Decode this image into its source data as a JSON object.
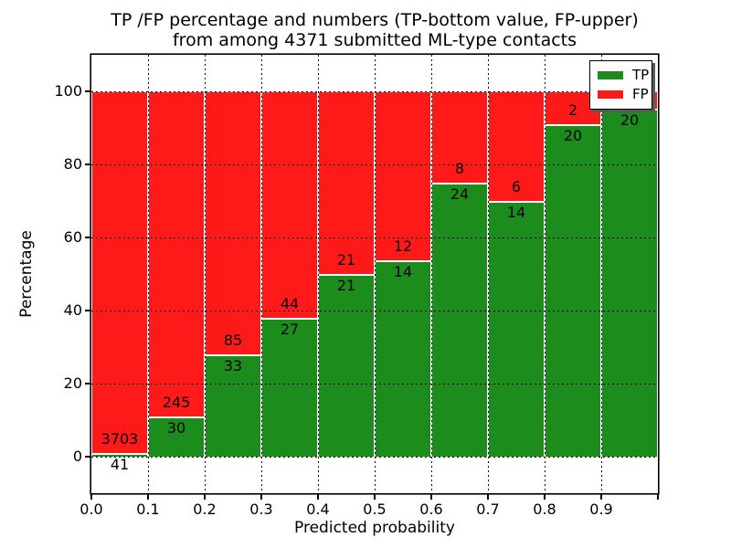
{
  "chart_data": {
    "type": "bar",
    "stacked": true,
    "title_line1": "TP /FP percentage and numbers (TP-bottom value, FP-upper)",
    "title_line2": "from among 4371 submitted ML-type contacts",
    "xlabel": "Predicted probability",
    "ylabel": "Percentage",
    "xlim": [
      0.0,
      1.0
    ],
    "ylim": [
      -10,
      110
    ],
    "y_ticks": [
      0,
      20,
      40,
      60,
      80,
      100
    ],
    "y_tick_labels": [
      "0",
      "20",
      "40",
      "60",
      "80",
      "100"
    ],
    "grid": "dotted",
    "legend_position": "upper right",
    "colors": {
      "tp": "#1c8c1c",
      "fp": "#ff1a1a"
    },
    "legend": [
      {
        "name": "tp",
        "label": "TP",
        "color": "#1c8c1c"
      },
      {
        "name": "fp",
        "label": "FP",
        "color": "#ff1a1a"
      }
    ],
    "bins": [
      {
        "x_tick": "0.0",
        "tp_pct": 1.1,
        "fp_pct": 98.9,
        "tp_label": "41",
        "fp_label": "3703"
      },
      {
        "x_tick": "0.1",
        "tp_pct": 10.91,
        "fp_pct": 89.09,
        "tp_label": "30",
        "fp_label": "245"
      },
      {
        "x_tick": "0.2",
        "tp_pct": 27.97,
        "fp_pct": 72.03,
        "tp_label": "33",
        "fp_label": "85"
      },
      {
        "x_tick": "0.3",
        "tp_pct": 38.03,
        "fp_pct": 61.97,
        "tp_label": "27",
        "fp_label": "44"
      },
      {
        "x_tick": "0.4",
        "tp_pct": 50.0,
        "fp_pct": 50.0,
        "tp_label": "21",
        "fp_label": "21"
      },
      {
        "x_tick": "0.5",
        "tp_pct": 53.85,
        "fp_pct": 46.15,
        "tp_label": "14",
        "fp_label": "12"
      },
      {
        "x_tick": "0.6",
        "tp_pct": 75.0,
        "fp_pct": 25.0,
        "tp_label": "24",
        "fp_label": "8"
      },
      {
        "x_tick": "0.7",
        "tp_pct": 70.0,
        "fp_pct": 30.0,
        "tp_label": "14",
        "fp_label": "6"
      },
      {
        "x_tick": "0.8",
        "tp_pct": 90.91,
        "fp_pct": 9.09,
        "tp_label": "20",
        "fp_label": "2"
      },
      {
        "x_tick": "0.9",
        "tp_pct": 95.24,
        "fp_pct": 4.76,
        "tp_label": "20",
        "fp_label": ""
      }
    ]
  }
}
